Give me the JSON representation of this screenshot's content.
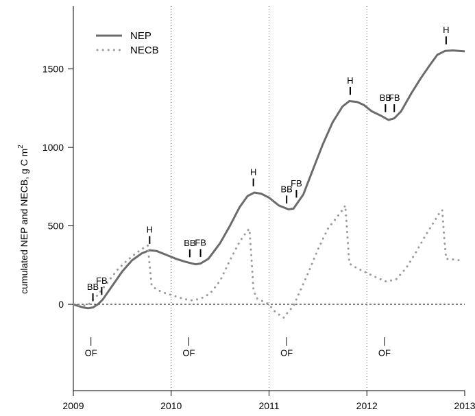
{
  "chart_data": {
    "type": "line",
    "title": "",
    "xlabel": "",
    "ylabel": "cumulated NEP and NECB, g C m",
    "ylabel_superscript": "2",
    "xlim": [
      2009.0,
      2013.0
    ],
    "ylim": [
      -550,
      1900
    ],
    "x_ticks": [
      2009,
      2010,
      2011,
      2012,
      2013
    ],
    "y_ticks": [
      0,
      500,
      1000,
      1500
    ],
    "vertical_dotted_lines": [
      2010,
      2011,
      2012
    ],
    "zero_line": true,
    "legend": {
      "placement": "top-left",
      "entries": [
        "NEP",
        "NECB"
      ]
    },
    "series": [
      {
        "name": "NEP",
        "style": "solid",
        "color": "#6b6b6b",
        "points": [
          [
            2009.0,
            0
          ],
          [
            2009.05,
            -10
          ],
          [
            2009.1,
            -20
          ],
          [
            2009.15,
            -25
          ],
          [
            2009.2,
            -20
          ],
          [
            2009.25,
            0
          ],
          [
            2009.3,
            30
          ],
          [
            2009.4,
            120
          ],
          [
            2009.5,
            210
          ],
          [
            2009.6,
            280
          ],
          [
            2009.7,
            325
          ],
          [
            2009.78,
            345
          ],
          [
            2009.85,
            340
          ],
          [
            2009.95,
            315
          ],
          [
            2010.05,
            290
          ],
          [
            2010.15,
            270
          ],
          [
            2010.25,
            255
          ],
          [
            2010.3,
            260
          ],
          [
            2010.38,
            290
          ],
          [
            2010.5,
            390
          ],
          [
            2010.6,
            500
          ],
          [
            2010.7,
            620
          ],
          [
            2010.78,
            690
          ],
          [
            2010.85,
            712
          ],
          [
            2010.92,
            705
          ],
          [
            2011.0,
            680
          ],
          [
            2011.1,
            630
          ],
          [
            2011.2,
            605
          ],
          [
            2011.25,
            610
          ],
          [
            2011.35,
            700
          ],
          [
            2011.45,
            860
          ],
          [
            2011.55,
            1020
          ],
          [
            2011.65,
            1160
          ],
          [
            2011.75,
            1260
          ],
          [
            2011.82,
            1295
          ],
          [
            2011.9,
            1290
          ],
          [
            2011.97,
            1270
          ],
          [
            2012.05,
            1230
          ],
          [
            2012.15,
            1200
          ],
          [
            2012.22,
            1175
          ],
          [
            2012.28,
            1185
          ],
          [
            2012.35,
            1230
          ],
          [
            2012.45,
            1340
          ],
          [
            2012.55,
            1440
          ],
          [
            2012.65,
            1530
          ],
          [
            2012.72,
            1590
          ],
          [
            2012.8,
            1615
          ],
          [
            2012.88,
            1618
          ],
          [
            2013.0,
            1612
          ]
        ]
      },
      {
        "name": "NECB",
        "style": "dotted",
        "color": "#9a9a9a",
        "points": [
          [
            2009.0,
            0
          ],
          [
            2009.08,
            -10
          ],
          [
            2009.15,
            -5
          ],
          [
            2009.2,
            30
          ],
          [
            2009.25,
            60
          ],
          [
            2009.35,
            140
          ],
          [
            2009.45,
            220
          ],
          [
            2009.55,
            280
          ],
          [
            2009.65,
            330
          ],
          [
            2009.72,
            360
          ],
          [
            2009.76,
            375
          ],
          [
            2009.78,
            250
          ],
          [
            2009.8,
            120
          ],
          [
            2009.85,
            95
          ],
          [
            2009.92,
            75
          ],
          [
            2010.0,
            60
          ],
          [
            2010.1,
            40
          ],
          [
            2010.2,
            25
          ],
          [
            2010.3,
            35
          ],
          [
            2010.4,
            70
          ],
          [
            2010.5,
            150
          ],
          [
            2010.6,
            280
          ],
          [
            2010.7,
            400
          ],
          [
            2010.78,
            470
          ],
          [
            2010.8,
            480
          ],
          [
            2010.82,
            300
          ],
          [
            2010.84,
            100
          ],
          [
            2010.87,
            40
          ],
          [
            2010.95,
            15
          ],
          [
            2011.0,
            0
          ],
          [
            2011.05,
            -40
          ],
          [
            2011.1,
            -65
          ],
          [
            2011.15,
            -85
          ],
          [
            2011.18,
            -60
          ],
          [
            2011.25,
            -10
          ],
          [
            2011.3,
            60
          ],
          [
            2011.4,
            200
          ],
          [
            2011.5,
            350
          ],
          [
            2011.6,
            480
          ],
          [
            2011.7,
            560
          ],
          [
            2011.76,
            610
          ],
          [
            2011.78,
            630
          ],
          [
            2011.8,
            450
          ],
          [
            2011.82,
            260
          ],
          [
            2011.9,
            230
          ],
          [
            2012.0,
            200
          ],
          [
            2012.1,
            170
          ],
          [
            2012.2,
            145
          ],
          [
            2012.3,
            160
          ],
          [
            2012.4,
            230
          ],
          [
            2012.5,
            330
          ],
          [
            2012.6,
            440
          ],
          [
            2012.7,
            540
          ],
          [
            2012.75,
            590
          ],
          [
            2012.77,
            600
          ],
          [
            2012.79,
            430
          ],
          [
            2012.81,
            290
          ],
          [
            2012.9,
            285
          ],
          [
            2012.95,
            280
          ]
        ]
      }
    ],
    "annotations_above": [
      {
        "label": "BB",
        "x": 2009.2,
        "y": -20,
        "gap": 50
      },
      {
        "label": "FB",
        "x": 2009.29,
        "y": 20,
        "gap": 50
      },
      {
        "label": "H",
        "x": 2009.78,
        "y": 345,
        "gap": 50
      },
      {
        "label": "BB",
        "x": 2010.19,
        "y": 260,
        "gap": 50
      },
      {
        "label": "FB",
        "x": 2010.3,
        "y": 262,
        "gap": 50
      },
      {
        "label": "H",
        "x": 2010.84,
        "y": 712,
        "gap": 50
      },
      {
        "label": "BB",
        "x": 2011.18,
        "y": 603,
        "gap": 50
      },
      {
        "label": "FB",
        "x": 2011.28,
        "y": 640,
        "gap": 50
      },
      {
        "label": "H",
        "x": 2011.83,
        "y": 1295,
        "gap": 50
      },
      {
        "label": "BB",
        "x": 2012.19,
        "y": 1185,
        "gap": 50
      },
      {
        "label": "FB",
        "x": 2012.28,
        "y": 1185,
        "gap": 50
      },
      {
        "label": "H",
        "x": 2012.81,
        "y": 1617,
        "gap": 50
      }
    ],
    "annotations_below": [
      {
        "label": "OF",
        "x": 2009.18
      },
      {
        "label": "OF",
        "x": 2010.18
      },
      {
        "label": "OF",
        "x": 2011.18
      },
      {
        "label": "OF",
        "x": 2012.18
      }
    ]
  }
}
